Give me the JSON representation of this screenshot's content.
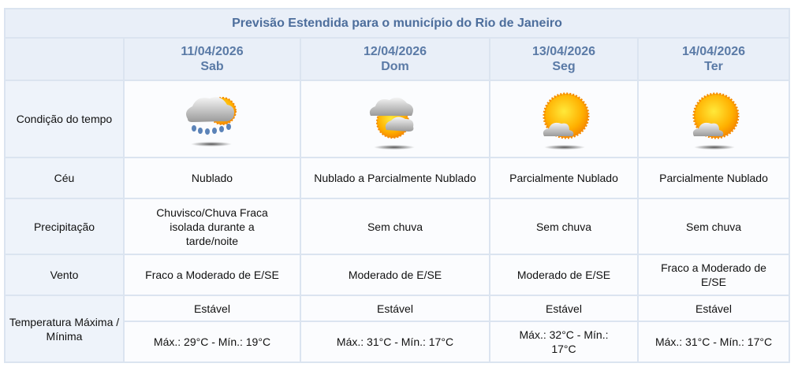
{
  "title": "Previsão Estendida para o município do Rio de Janeiro",
  "row_labels": {
    "condition": "Condição do tempo",
    "sky": "Céu",
    "precip": "Precipitação",
    "wind": "Vento",
    "temp": "Temperatura Máxima / Mínima"
  },
  "days": [
    {
      "date": "11/04/2026",
      "weekday": "Sab",
      "icon": "cloud-sun-rain-icon",
      "sky": "Nublado",
      "precip": "Chuvisco/Chuva Fraca isolada durante a tarde/noite",
      "wind": "Fraco a Moderado de E/SE",
      "trend": "Estável",
      "temps": "Máx.: 29°C - Mín.: 19°C"
    },
    {
      "date": "12/04/2026",
      "weekday": "Dom",
      "icon": "cloudy-sun-icon",
      "sky": "Nublado a Parcialmente Nublado",
      "precip": "Sem chuva",
      "wind": "Moderado de E/SE",
      "trend": "Estável",
      "temps": "Máx.: 31°C - Mín.: 17°C"
    },
    {
      "date": "13/04/2026",
      "weekday": "Seg",
      "icon": "sun-cloud-icon",
      "sky": "Parcialmente Nublado",
      "precip": "Sem chuva",
      "wind": "Moderado de E/SE",
      "trend": "Estável",
      "temps": "Máx.: 32°C - Mín.: 17°C"
    },
    {
      "date": "14/04/2026",
      "weekday": "Ter",
      "icon": "sun-cloud-icon",
      "sky": "Parcialmente Nublado",
      "precip": "Sem chuva",
      "wind": "Fraco a Moderado de E/SE",
      "trend": "Estável",
      "temps": "Máx.: 31°C - Mín.: 17°C"
    }
  ]
}
